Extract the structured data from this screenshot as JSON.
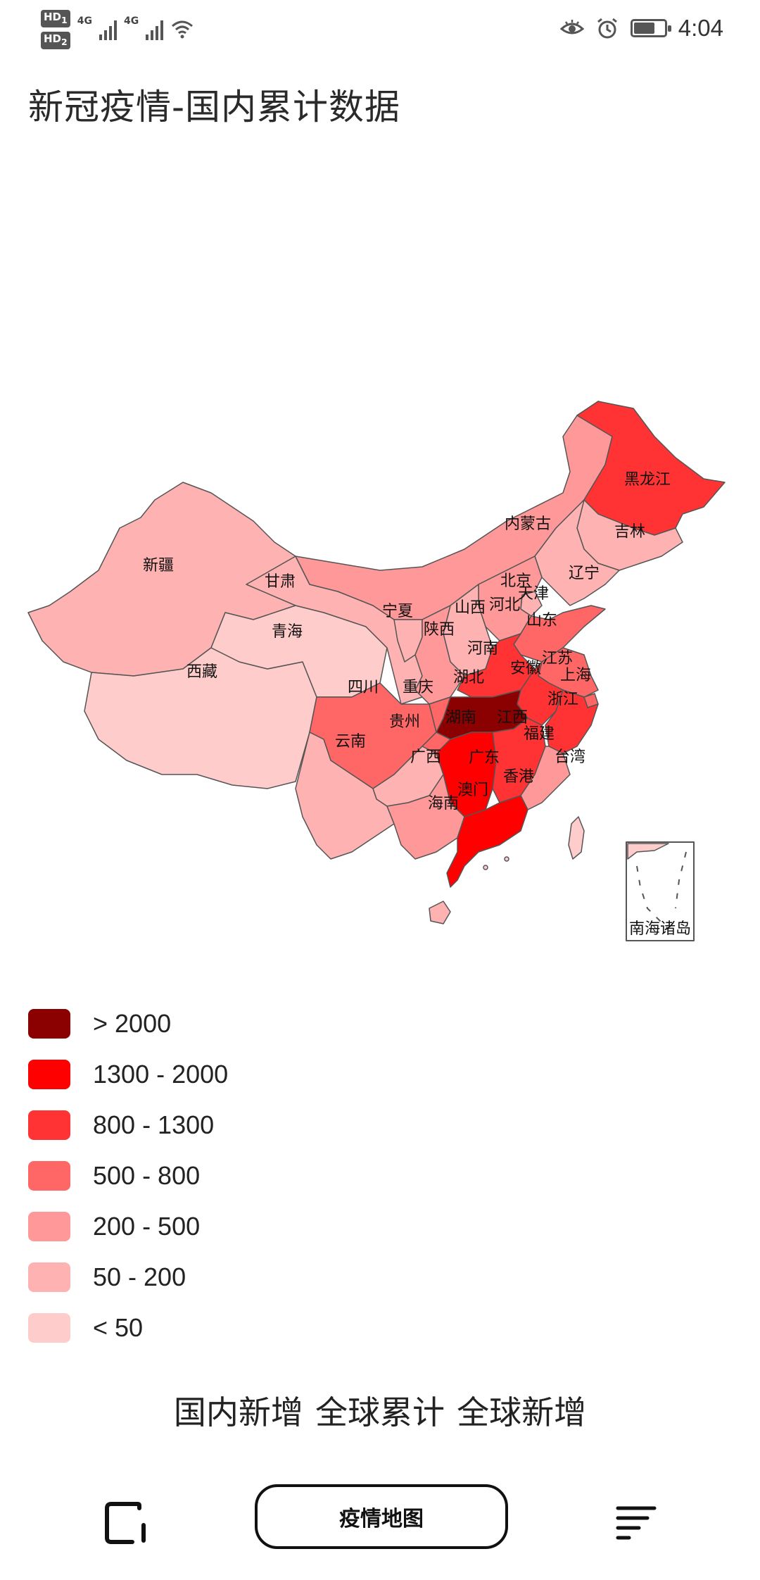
{
  "status_bar": {
    "sim1_badge": "HD",
    "sim1_index": "1",
    "sim2_badge": "HD",
    "sim2_index": "2",
    "network1": "4G",
    "network2": "4G",
    "time": "4:04",
    "battery_level": 0.65,
    "icons": [
      "eye-icon",
      "alarm-icon",
      "battery-icon",
      "wifi-icon",
      "signal-icon"
    ]
  },
  "title": "新冠疫情-国内累计数据",
  "map": {
    "provinces": [
      "黑龙江",
      "吉林",
      "辽宁",
      "内蒙古",
      "北京",
      "天津",
      "河北",
      "山西",
      "山东",
      "新疆",
      "甘肃",
      "宁夏",
      "青海",
      "陕西",
      "河南",
      "江苏",
      "安徽",
      "上海",
      "湖北",
      "浙江",
      "四川",
      "重庆",
      "西藏",
      "湖南",
      "江西",
      "贵州",
      "福建",
      "云南",
      "广西",
      "广东",
      "台湾",
      "香港",
      "澳门",
      "海南",
      "南海诸岛"
    ]
  },
  "legend": [
    {
      "label": "> 2000",
      "color": "#8b0000"
    },
    {
      "label": "1300 - 2000",
      "color": "#ff0000"
    },
    {
      "label": "800 - 1300",
      "color": "#ff3333"
    },
    {
      "label": "500 - 800",
      "color": "#ff6666"
    },
    {
      "label": "200 - 500",
      "color": "#ff9999"
    },
    {
      "label": "50 - 200",
      "color": "#ffb2b2"
    },
    {
      "label": "< 50",
      "color": "#ffcccc"
    }
  ],
  "tabs": [
    "国内新增",
    "全球累计",
    "全球新增"
  ],
  "nav": {
    "center_label": "疫情地图"
  }
}
